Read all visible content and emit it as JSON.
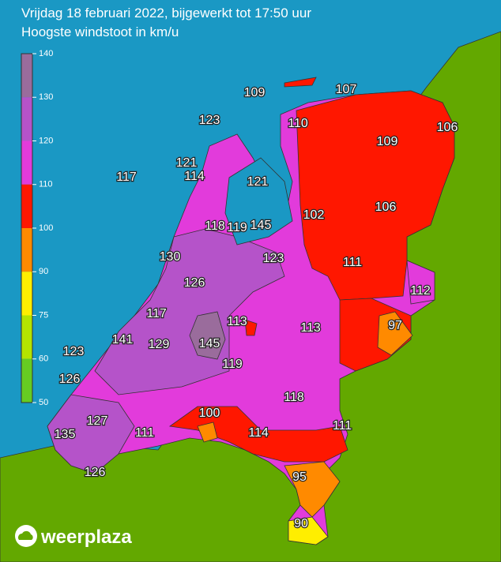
{
  "header": {
    "title": "Vrijdag 18 februari 2022, bijgewerkt tot 17:50 uur",
    "subtitle": "Hoogste windstoot in km/u"
  },
  "legend": {
    "ticks": [
      140,
      130,
      120,
      110,
      100,
      90,
      75,
      60,
      50
    ],
    "colors": [
      "#9a6c9c",
      "#b553c9",
      "#e23bdb",
      "#ff1700",
      "#ff8a00",
      "#ffee00",
      "#b4e400",
      "#66cc22"
    ]
  },
  "stations": [
    109,
    107,
    123,
    110,
    106,
    109,
    117,
    121,
    114,
    121,
    102,
    106,
    118,
    119,
    145,
    130,
    123,
    111,
    126,
    112,
    117,
    113,
    113,
    97,
    141,
    129,
    145,
    123,
    119,
    126,
    118,
    127,
    100,
    114,
    111,
    111,
    135,
    126,
    95,
    90
  ],
  "logo": "weerplaza"
}
